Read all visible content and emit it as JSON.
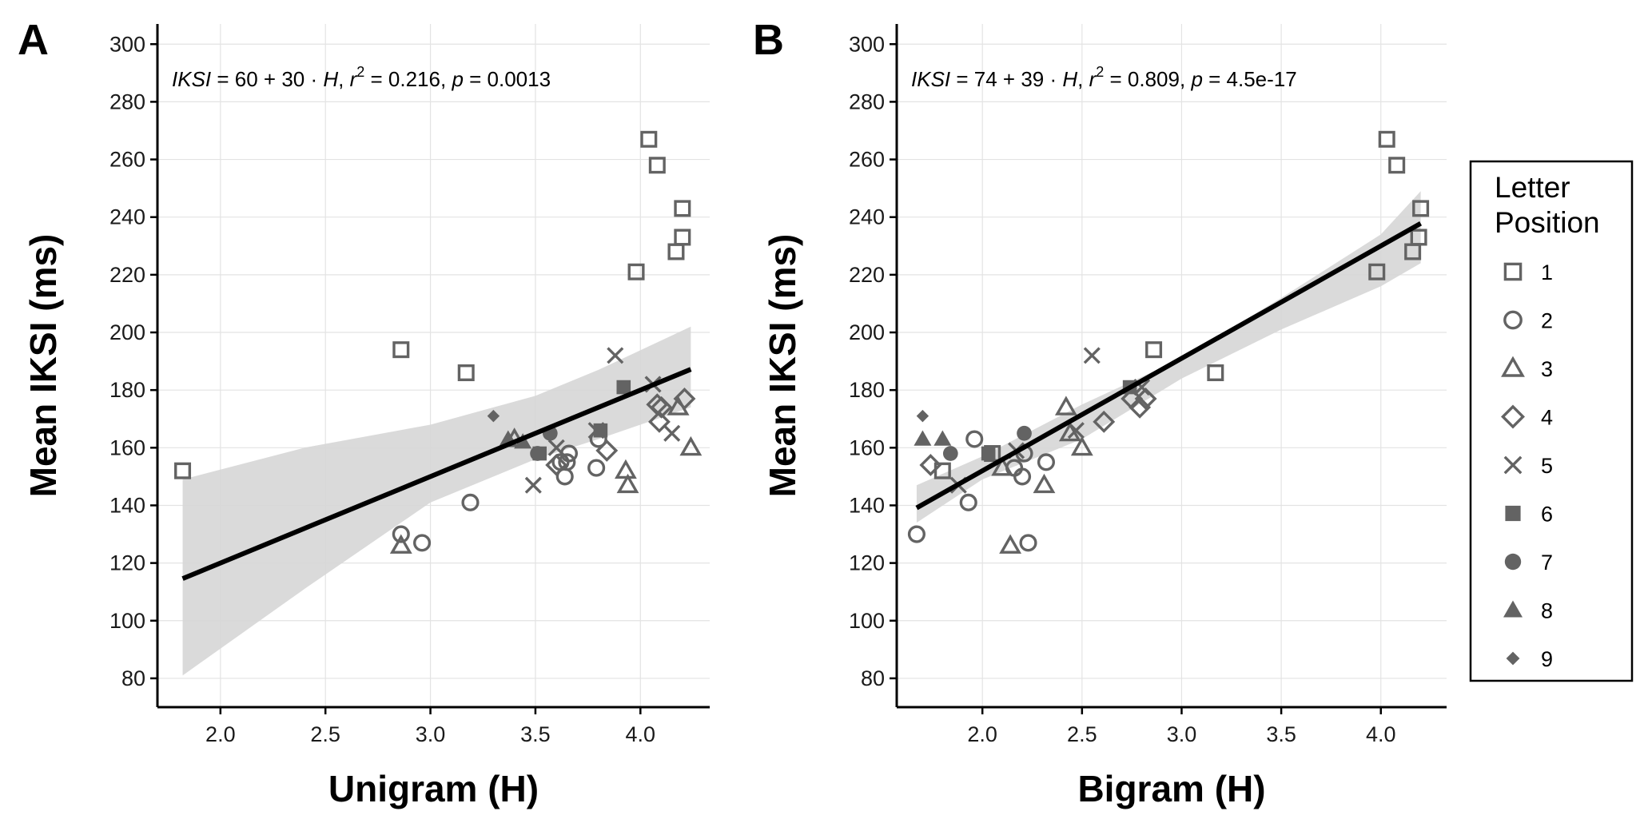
{
  "chart_data": [
    {
      "type": "scatter",
      "panel_label": "A",
      "xlabel": "Unigram (H)",
      "ylabel": "Mean IKSI (ms)",
      "xlim": [
        1.7,
        4.33
      ],
      "ylim": [
        70,
        307
      ],
      "xticks": [
        2.0,
        2.5,
        3.0,
        3.5,
        4.0
      ],
      "xtick_labels": [
        "2.0",
        "2.5",
        "3.0",
        "3.5",
        "4.0"
      ],
      "yticks": [
        80,
        100,
        120,
        140,
        160,
        180,
        200,
        220,
        240,
        260,
        280,
        300
      ],
      "ytick_labels": [
        "80",
        "100",
        "120",
        "140",
        "160",
        "180",
        "200",
        "220",
        "240",
        "260",
        "280",
        "300"
      ],
      "grid": true,
      "annotation": {
        "var": "IKSI",
        "eq": " = 60 + 30 · ",
        "hvar": "H",
        "r_pre": ", ",
        "r_var": "r",
        "r_sup": "2",
        "r_val": " = 0.216, ",
        "p_var": "p",
        "p_val": " = 0.0013"
      },
      "fit": {
        "intercept": 60,
        "slope": 30,
        "x_range": [
          1.82,
          4.24
        ]
      },
      "ci_band": {
        "x": [
          1.82,
          2.4,
          3.0,
          3.5,
          3.8,
          4.24
        ],
        "lower": [
          81,
          111,
          141,
          156,
          163,
          174
        ],
        "upper": [
          149,
          160,
          168,
          178,
          187,
          202
        ]
      },
      "series": [
        {
          "name": "1",
          "marker": "square",
          "points": [
            [
              1.82,
              152
            ],
            [
              2.86,
              194
            ],
            [
              3.17,
              186
            ],
            [
              3.98,
              221
            ],
            [
              4.04,
              267
            ],
            [
              4.08,
              258
            ],
            [
              4.17,
              228
            ],
            [
              4.2,
              233
            ],
            [
              4.2,
              243
            ]
          ]
        },
        {
          "name": "2",
          "marker": "circle",
          "points": [
            [
              2.86,
              130
            ],
            [
              2.96,
              127
            ],
            [
              3.19,
              141
            ],
            [
              3.62,
              155
            ],
            [
              3.64,
              150
            ],
            [
              3.65,
              155
            ],
            [
              3.66,
              158
            ],
            [
              3.79,
              153
            ],
            [
              3.8,
              163
            ]
          ]
        },
        {
          "name": "3",
          "marker": "triangle",
          "points": [
            [
              2.86,
              126
            ],
            [
              3.4,
              163
            ],
            [
              3.93,
              152
            ],
            [
              3.94,
              147
            ],
            [
              4.18,
              174
            ],
            [
              4.24,
              160
            ]
          ]
        },
        {
          "name": "4",
          "marker": "diamond",
          "points": [
            [
              3.6,
              154
            ],
            [
              3.84,
              159
            ],
            [
              4.08,
              175
            ],
            [
              4.09,
              169
            ],
            [
              4.1,
              174
            ],
            [
              4.21,
              177
            ]
          ]
        },
        {
          "name": "5",
          "marker": "x",
          "points": [
            [
              3.49,
              147
            ],
            [
              3.6,
              160
            ],
            [
              3.79,
              166
            ],
            [
              3.88,
              192
            ],
            [
              4.06,
              182
            ],
            [
              4.15,
              165
            ]
          ]
        },
        {
          "name": "6",
          "marker": "square-filled",
          "points": [
            [
              3.52,
              158
            ],
            [
              3.81,
              166
            ],
            [
              3.92,
              181
            ]
          ]
        },
        {
          "name": "7",
          "marker": "circle-filled",
          "points": [
            [
              3.51,
              158
            ],
            [
              3.57,
              165
            ]
          ]
        },
        {
          "name": "8",
          "marker": "triangle-filled",
          "points": [
            [
              3.37,
              163
            ],
            [
              3.44,
              162
            ]
          ]
        },
        {
          "name": "9",
          "marker": "diamond-filled",
          "points": [
            [
              3.3,
              171
            ]
          ]
        }
      ]
    },
    {
      "type": "scatter",
      "panel_label": "B",
      "xlabel": "Bigram (H)",
      "ylabel": "Mean IKSI (ms)",
      "xlim": [
        1.57,
        4.33
      ],
      "ylim": [
        70,
        307
      ],
      "xticks": [
        2.0,
        2.5,
        3.0,
        3.5,
        4.0
      ],
      "xtick_labels": [
        "2.0",
        "2.5",
        "3.0",
        "3.5",
        "4.0"
      ],
      "yticks": [
        80,
        100,
        120,
        140,
        160,
        180,
        200,
        220,
        240,
        260,
        280,
        300
      ],
      "ytick_labels": [
        "80",
        "100",
        "120",
        "140",
        "160",
        "180",
        "200",
        "220",
        "240",
        "260",
        "280",
        "300"
      ],
      "grid": true,
      "annotation": {
        "var": "IKSI",
        "eq": " = 74 + 39 · ",
        "hvar": "H",
        "r_pre": ", ",
        "r_var": "r",
        "r_sup": "2",
        "r_val": " = 0.809, ",
        "p_var": "p",
        "p_val": " = 4.5e-17"
      },
      "fit": {
        "intercept": 74,
        "slope": 39,
        "x_range": [
          1.67,
          4.2
        ]
      },
      "ci_band": {
        "x": [
          1.67,
          2.0,
          2.5,
          3.0,
          3.5,
          4.0,
          4.2
        ],
        "lower": [
          134,
          149,
          163,
          184,
          201,
          216,
          224
        ],
        "upper": [
          147,
          157,
          175,
          191,
          212,
          234,
          249
        ]
      },
      "series": [
        {
          "name": "1",
          "marker": "square",
          "points": [
            [
              1.8,
              152
            ],
            [
              2.05,
              158
            ],
            [
              2.86,
              194
            ],
            [
              3.17,
              186
            ],
            [
              3.98,
              221
            ],
            [
              4.03,
              267
            ],
            [
              4.08,
              258
            ],
            [
              4.16,
              228
            ],
            [
              4.19,
              233
            ],
            [
              4.2,
              243
            ]
          ]
        },
        {
          "name": "2",
          "marker": "circle",
          "points": [
            [
              1.67,
              130
            ],
            [
              1.93,
              141
            ],
            [
              1.96,
              163
            ],
            [
              2.16,
              153
            ],
            [
              2.2,
              150
            ],
            [
              2.21,
              158
            ],
            [
              2.23,
              127
            ],
            [
              2.32,
              155
            ]
          ]
        },
        {
          "name": "3",
          "marker": "triangle",
          "points": [
            [
              2.1,
              153
            ],
            [
              2.14,
              126
            ],
            [
              2.31,
              147
            ],
            [
              2.42,
              174
            ],
            [
              2.44,
              165
            ],
            [
              2.5,
              160
            ]
          ]
        },
        {
          "name": "4",
          "marker": "diamond",
          "points": [
            [
              1.74,
              154
            ],
            [
              2.61,
              169
            ],
            [
              2.75,
              177
            ],
            [
              2.79,
              174
            ],
            [
              2.82,
              177
            ]
          ]
        },
        {
          "name": "5",
          "marker": "x",
          "points": [
            [
              1.88,
              147
            ],
            [
              2.17,
              159
            ],
            [
              2.47,
              166
            ],
            [
              2.55,
              192
            ],
            [
              2.8,
              181
            ]
          ]
        },
        {
          "name": "6",
          "marker": "square-filled",
          "points": [
            [
              2.03,
              158
            ],
            [
              2.74,
              181
            ]
          ]
        },
        {
          "name": "7",
          "marker": "circle-filled",
          "points": [
            [
              1.84,
              158
            ],
            [
              2.21,
              165
            ]
          ]
        },
        {
          "name": "8",
          "marker": "triangle-filled",
          "points": [
            [
              1.7,
              163
            ],
            [
              1.8,
              163
            ]
          ]
        },
        {
          "name": "9",
          "marker": "diamond-filled",
          "points": [
            [
              1.7,
              171
            ]
          ]
        }
      ]
    }
  ],
  "legend": {
    "title_line1": "Letter",
    "title_line2": "Position",
    "placement": "right",
    "entries": [
      {
        "label": "1",
        "marker": "square"
      },
      {
        "label": "2",
        "marker": "circle"
      },
      {
        "label": "3",
        "marker": "triangle"
      },
      {
        "label": "4",
        "marker": "diamond"
      },
      {
        "label": "5",
        "marker": "x"
      },
      {
        "label": "6",
        "marker": "square-filled"
      },
      {
        "label": "7",
        "marker": "circle-filled"
      },
      {
        "label": "8",
        "marker": "triangle-filled"
      },
      {
        "label": "9",
        "marker": "diamond-filled"
      }
    ]
  },
  "colors": {
    "marker": "#636363",
    "fit_line": "#000000",
    "ci_band": "#d6d6d6",
    "grid": "#e3e3e3",
    "axis": "#000000",
    "legend_border": "#000000"
  }
}
